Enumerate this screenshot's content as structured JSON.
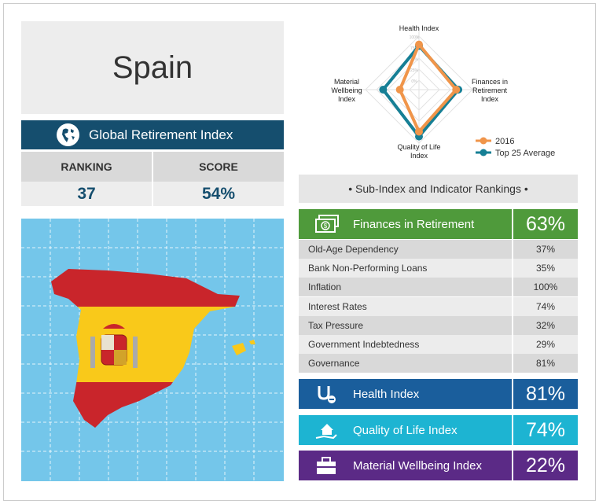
{
  "country": "Spain",
  "global": {
    "title": "Global Retirement Index",
    "ranking_label": "RANKING",
    "score_label": "SCORE",
    "ranking": "37",
    "score": "54%"
  },
  "subindex_header": "• Sub-Index and Indicator Rankings •",
  "finances": {
    "label": "Finances in Retirement",
    "value": "63%",
    "color": "#4f9a3b",
    "rows": [
      {
        "label": "Old-Age Dependency",
        "value": "37%"
      },
      {
        "label": "Bank Non-Performing Loans",
        "value": "35%"
      },
      {
        "label": "Inflation",
        "value": "100%"
      },
      {
        "label": "Interest Rates",
        "value": "74%"
      },
      {
        "label": "Tax Pressure",
        "value": "32%"
      },
      {
        "label": "Government Indebtedness",
        "value": "29%"
      },
      {
        "label": "Governance",
        "value": "81%"
      }
    ]
  },
  "health": {
    "label": "Health Index",
    "value": "81%",
    "color": "#1a5e9c"
  },
  "quality": {
    "label": "Quality of Life Index",
    "value": "74%",
    "color": "#1db4d2"
  },
  "material": {
    "label": "Material Wellbeing Index",
    "value": "22%",
    "color": "#5b2a86"
  },
  "chart_data": {
    "type": "radar",
    "axes": [
      "Health Index",
      "Finances in Retirement Index",
      "Quality of Life Index",
      "Material Wellbeing Index"
    ],
    "ticks": [
      "0%",
      "25%",
      "50%",
      "75%",
      "100%"
    ],
    "series": [
      {
        "name": "2016",
        "color": "#f0954a",
        "values": [
          81,
          63,
          74,
          22
        ]
      },
      {
        "name": "Top 25 Average",
        "color": "#167f95",
        "values": [
          78,
          68,
          85,
          60
        ]
      }
    ],
    "legend": "bottom-right"
  }
}
